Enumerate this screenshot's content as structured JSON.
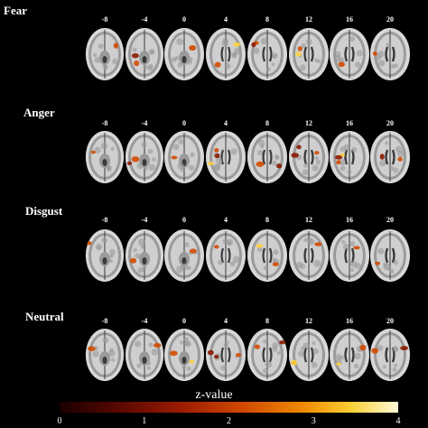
{
  "colors": {
    "background": "#000000",
    "text": "#ffffff",
    "brain_light": "#d8d8d8",
    "brain_mid": "#9a9a9a",
    "brain_dark": "#3a3a3a",
    "activation_low": "#8a1a00",
    "activation_mid": "#d24a00",
    "activation_high": "#ffd23a"
  },
  "slice_levels": [
    "-8",
    "-4",
    "0",
    "4",
    "8",
    "12",
    "16",
    "20"
  ],
  "rows": [
    {
      "label": "Fear"
    },
    {
      "label": "Anger"
    },
    {
      "label": "Disgust"
    },
    {
      "label": "Neutral"
    }
  ],
  "colorbar": {
    "title": "z-value",
    "ticks": [
      "0",
      "1",
      "2",
      "3",
      "4"
    ]
  }
}
